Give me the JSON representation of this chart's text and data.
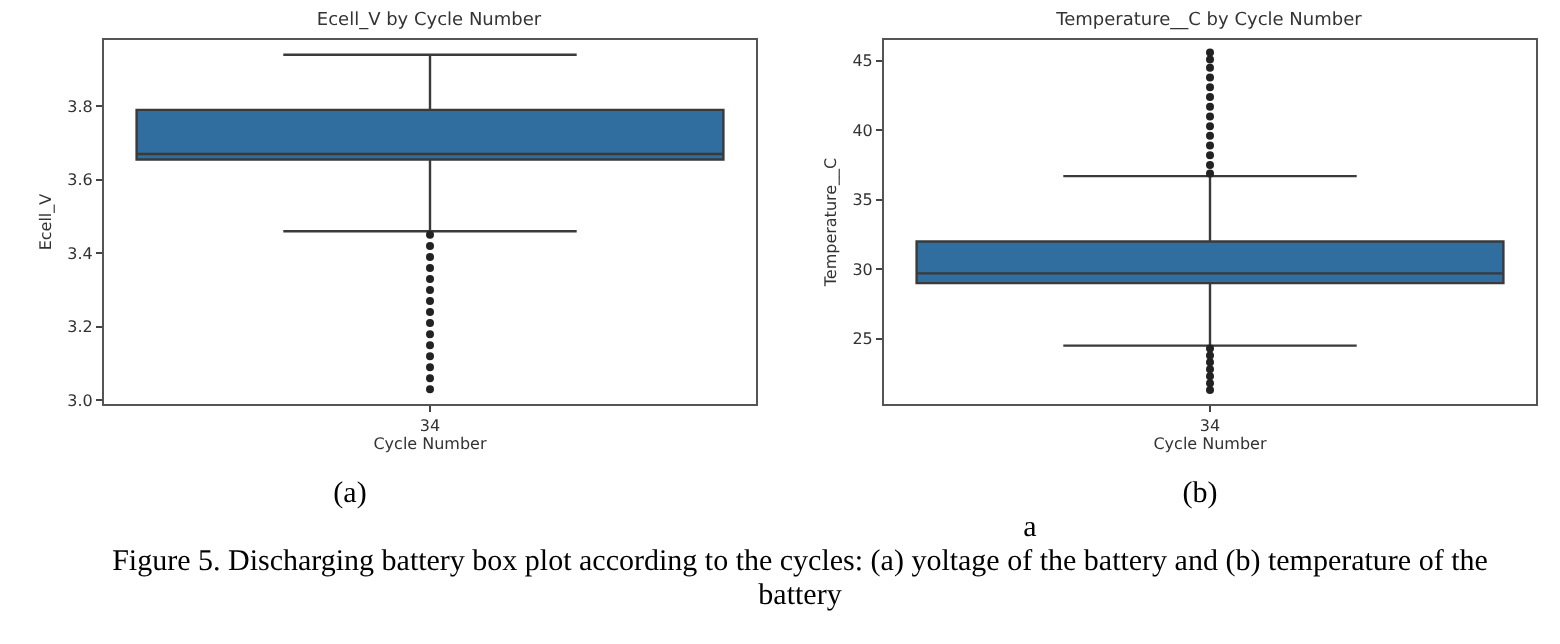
{
  "chart_data": [
    {
      "type": "box",
      "title": "Ecell_V by Cycle Number",
      "xlabel": "Cycle Number",
      "ylabel": "Ecell_V",
      "categories": [
        "34"
      ],
      "boxes": [
        {
          "low": 3.46,
          "q1": 3.655,
          "median": 3.67,
          "q3": 3.79,
          "high": 3.94,
          "outliers": [
            3.03,
            3.06,
            3.09,
            3.12,
            3.15,
            3.18,
            3.21,
            3.24,
            3.27,
            3.3,
            3.33,
            3.36,
            3.39,
            3.42,
            3.45
          ]
        }
      ],
      "color": "#2f6e9e",
      "ylim": [
        2.99,
        3.98
      ],
      "yticks": [
        {
          "value": 3.0,
          "label": "3.0"
        },
        {
          "value": 3.2,
          "label": "3.2"
        },
        {
          "value": 3.4,
          "label": "3.4"
        },
        {
          "value": 3.6,
          "label": "3.6"
        },
        {
          "value": 3.8,
          "label": "3.8"
        }
      ],
      "grid": false,
      "annotations": [
        "(a)"
      ]
    },
    {
      "type": "box",
      "title": "Temperature__C by Cycle Number",
      "xlabel": "Cycle Number",
      "ylabel": "Temperature__C",
      "categories": [
        "34"
      ],
      "boxes": [
        {
          "low": 24.5,
          "q1": 29.0,
          "median": 29.7,
          "q3": 32.0,
          "high": 36.7,
          "outliers": [
            21.3,
            21.8,
            22.3,
            22.8,
            23.3,
            23.8,
            24.3,
            36.9,
            37.5,
            38.2,
            38.9,
            39.6,
            40.3,
            41.0,
            41.7,
            42.4,
            43.1,
            43.8,
            44.5,
            45.1,
            45.6
          ]
        }
      ],
      "color": "#2f6e9e",
      "ylim": [
        20.3,
        46.5
      ],
      "yticks": [
        25,
        30,
        35,
        40,
        45
      ],
      "grid": false,
      "annotations": [
        "(b)",
        "a",
        "Figure 5. Discharging battery box plot according to the cycles: (a) yoltage of the battery and (b) temperature of the battery"
      ]
    }
  ]
}
